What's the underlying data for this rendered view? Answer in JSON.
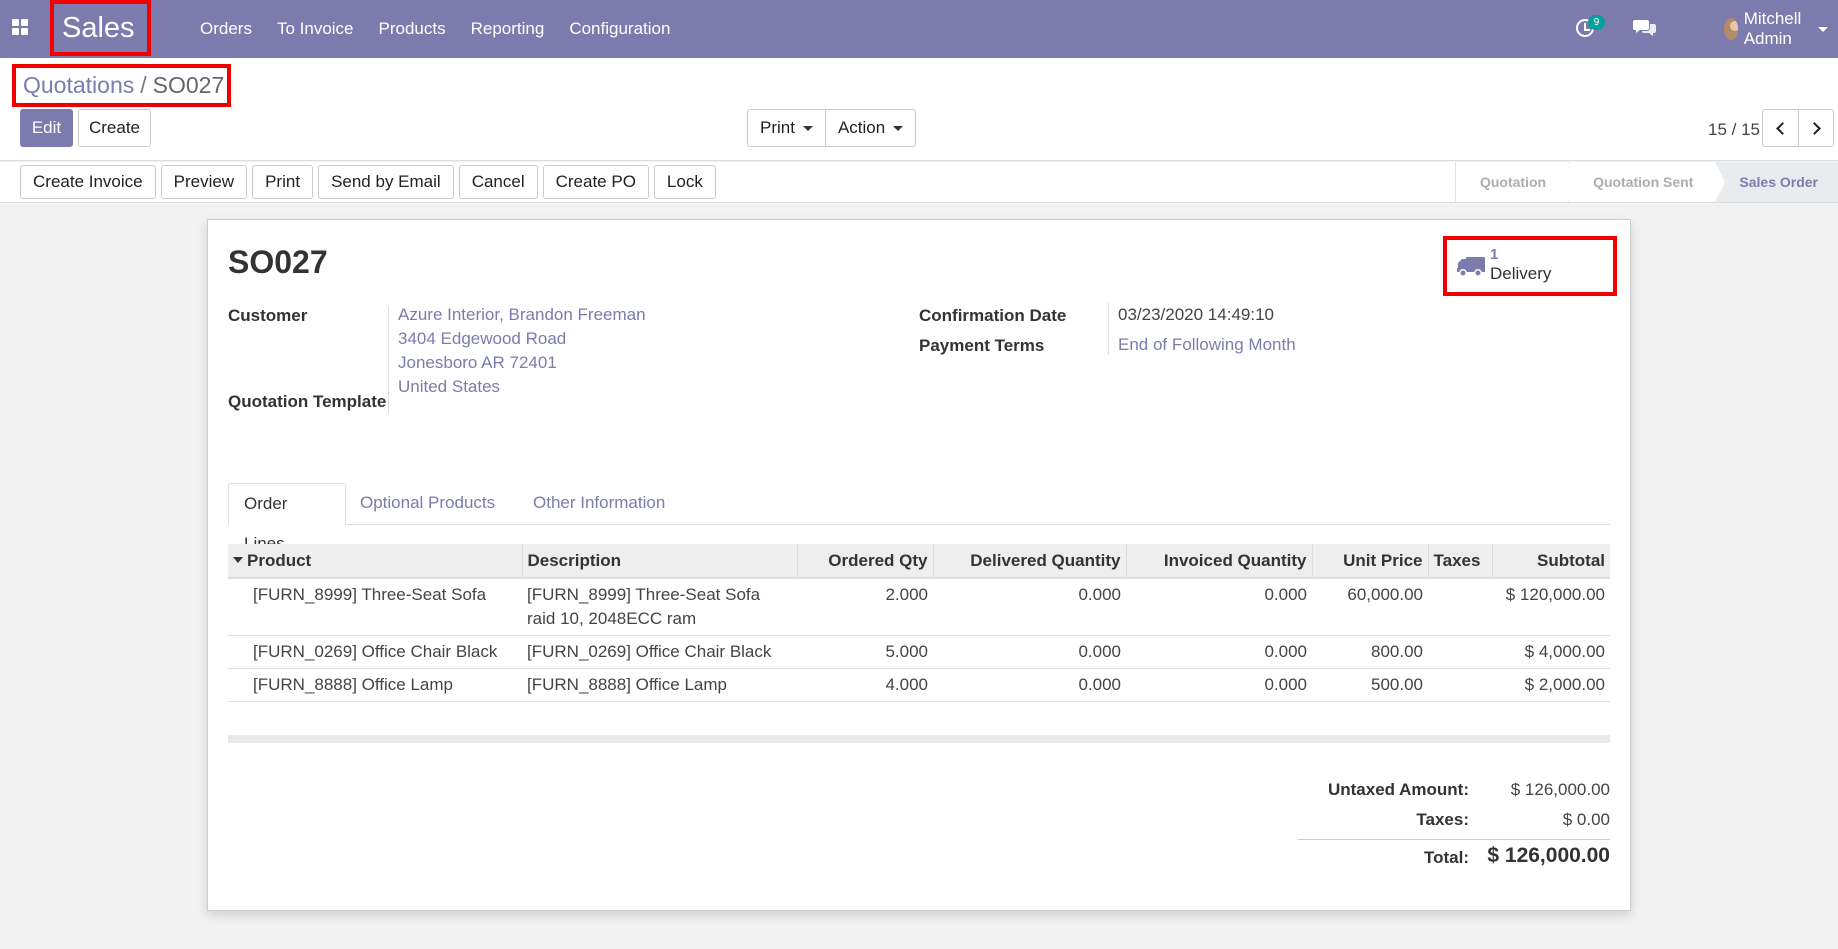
{
  "navbar": {
    "brand": "Sales",
    "menu": [
      "Orders",
      "To Invoice",
      "Products",
      "Reporting",
      "Configuration"
    ],
    "activity_count": "9",
    "user_name": "Mitchell Admin"
  },
  "breadcrumb": {
    "parent": "Quotations",
    "separator": "/",
    "current": "SO027"
  },
  "control": {
    "edit_label": "Edit",
    "create_label": "Create",
    "print_label": "Print",
    "action_label": "Action",
    "pager": "15 / 15"
  },
  "statusbar": {
    "buttons": [
      "Create Invoice",
      "Preview",
      "Print",
      "Send by Email",
      "Cancel",
      "Create PO",
      "Lock"
    ],
    "stages": [
      "Quotation",
      "Quotation Sent",
      "Sales Order"
    ],
    "current_stage": "Sales Order"
  },
  "form": {
    "title": "SO027",
    "delivery_count": "1",
    "delivery_label": "Delivery",
    "customer_label": "Customer",
    "customer_lines": [
      "Azure Interior, Brandon Freeman",
      "3404 Edgewood Road",
      "Jonesboro AR 72401",
      "United States"
    ],
    "template_label": "Quotation Template",
    "confirmation_label": "Confirmation Date",
    "confirmation_value": "03/23/2020 14:49:10",
    "payment_label": "Payment Terms",
    "payment_value": "End of Following Month"
  },
  "tabs": [
    "Order Lines",
    "Optional Products",
    "Other Information"
  ],
  "order_lines": {
    "columns": [
      "Product",
      "Description",
      "Ordered Qty",
      "Delivered Quantity",
      "Invoiced Quantity",
      "Unit Price",
      "Taxes",
      "Subtotal"
    ],
    "rows": [
      {
        "product": "[FURN_8999] Three-Seat Sofa",
        "description_1": "[FURN_8999] Three-Seat Sofa",
        "description_2": "raid 10, 2048ECC ram",
        "ordered": "2.000",
        "delivered": "0.000",
        "invoiced": "0.000",
        "unit_price": "60,000.00",
        "taxes": "",
        "subtotal": "$ 120,000.00"
      },
      {
        "product": "[FURN_0269] Office Chair Black",
        "description_1": "[FURN_0269] Office Chair Black",
        "description_2": "",
        "ordered": "5.000",
        "delivered": "0.000",
        "invoiced": "0.000",
        "unit_price": "800.00",
        "taxes": "",
        "subtotal": "$ 4,000.00"
      },
      {
        "product": "[FURN_8888] Office Lamp",
        "description_1": "[FURN_8888] Office Lamp",
        "description_2": "",
        "ordered": "4.000",
        "delivered": "0.000",
        "invoiced": "0.000",
        "unit_price": "500.00",
        "taxes": "",
        "subtotal": "$ 2,000.00"
      }
    ]
  },
  "totals": {
    "untaxed_label": "Untaxed Amount:",
    "untaxed_value": "$ 126,000.00",
    "taxes_label": "Taxes:",
    "taxes_value": "$ 0.00",
    "total_label": "Total:",
    "total_value": "$ 126,000.00"
  },
  "colors": {
    "brand": "#7c7bad",
    "highlight": "#f20000",
    "badge": "#00a09d"
  }
}
